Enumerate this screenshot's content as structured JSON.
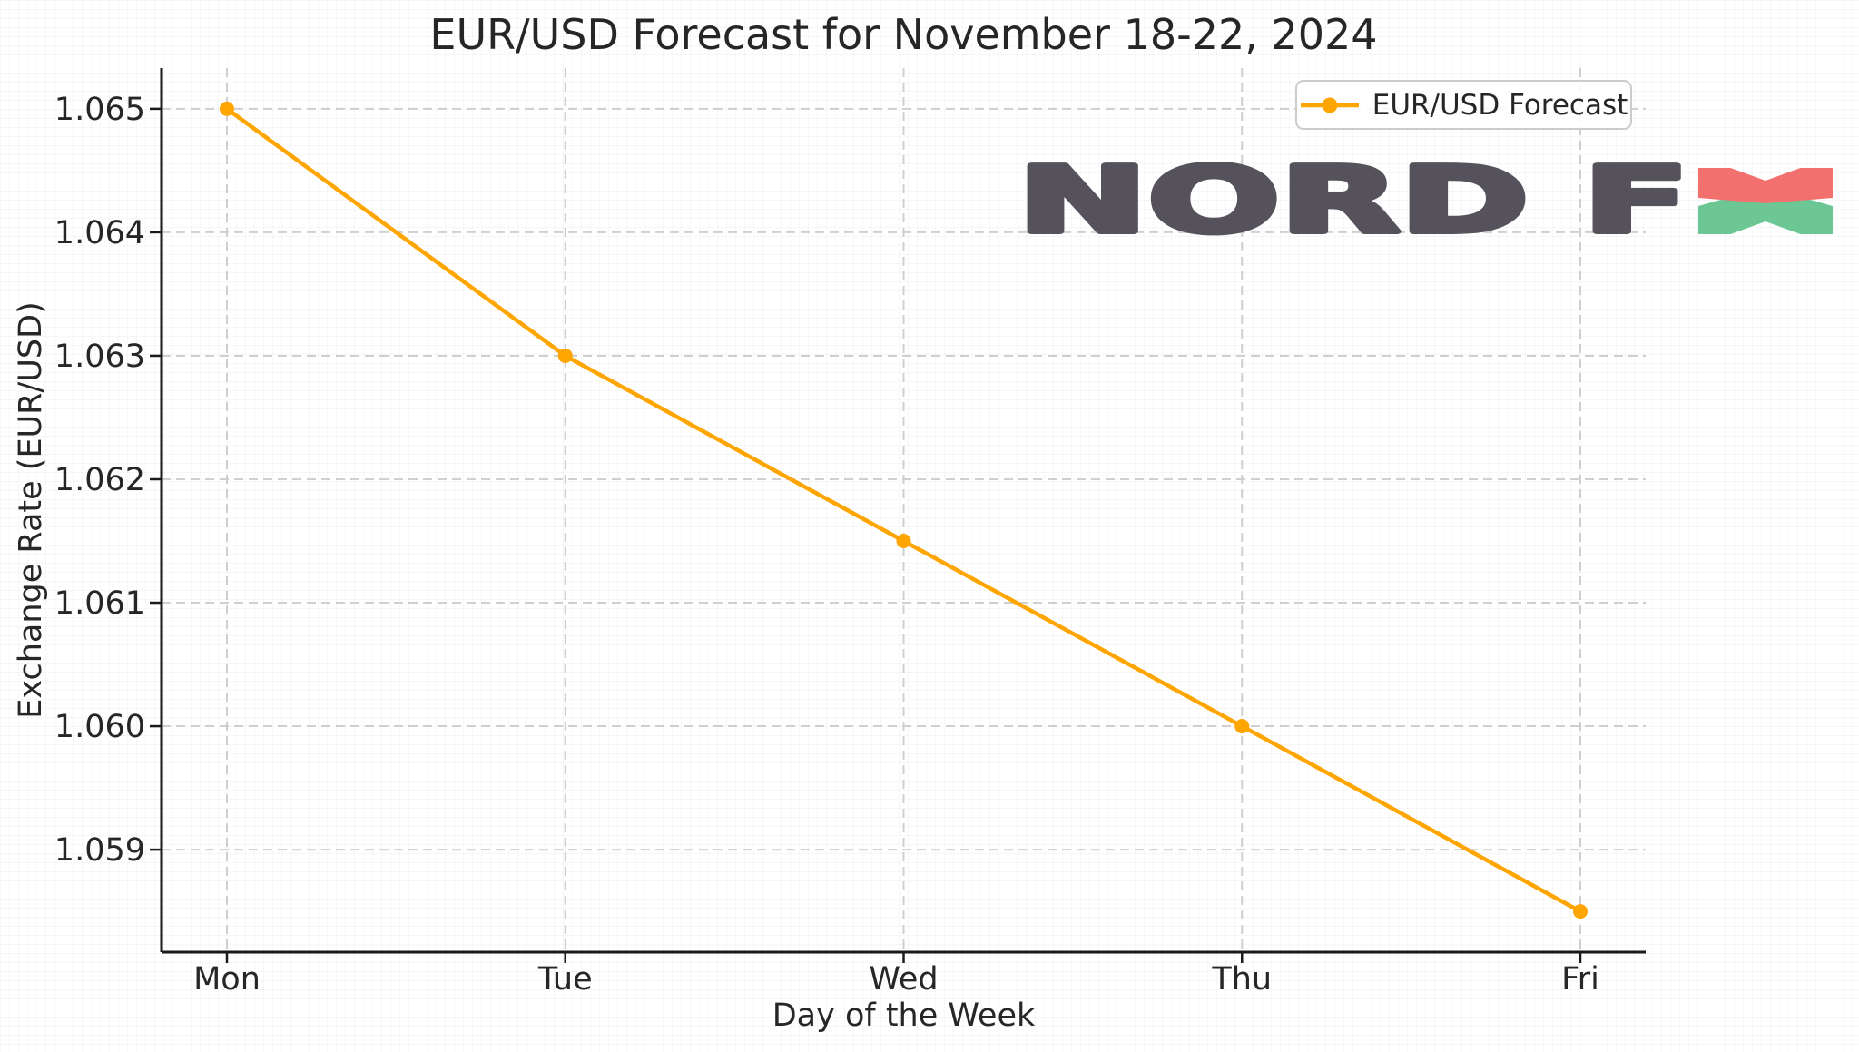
{
  "chart_data": {
    "type": "line",
    "title": "EUR/USD Forecast for November 18-22, 2024",
    "xlabel": "Day of the Week",
    "ylabel": "Exchange Rate (EUR/USD)",
    "categories": [
      "Mon",
      "Tue",
      "Wed",
      "Thu",
      "Fri"
    ],
    "series": [
      {
        "name": "EUR/USD Forecast",
        "color": "#FFA500",
        "marker": "circle",
        "values": [
          1.065,
          1.063,
          1.0615,
          1.06,
          1.0585
        ]
      }
    ],
    "yticks": [
      1.059,
      1.06,
      1.061,
      1.062,
      1.063,
      1.064,
      1.065
    ],
    "ytick_labels": [
      "1.059",
      "1.060",
      "1.061",
      "1.062",
      "1.063",
      "1.064",
      "1.065"
    ],
    "ylim": [
      1.05817,
      1.06533
    ],
    "grid": true,
    "grid_style": "dashed",
    "legend_position": "upper right"
  },
  "legend": {
    "label": "EUR/USD Forecast"
  },
  "logo": {
    "brand": "NORD FX",
    "text_part": "NORD F",
    "colors": {
      "text": "#56525B",
      "x_top": "#F2706E",
      "x_bottom": "#6CC794"
    }
  },
  "theme": {
    "accent": "#FFA500",
    "text": "#262626",
    "grid": "#CFCFCF",
    "spine": "#1A1A1A",
    "background": "#FFFFFF"
  }
}
